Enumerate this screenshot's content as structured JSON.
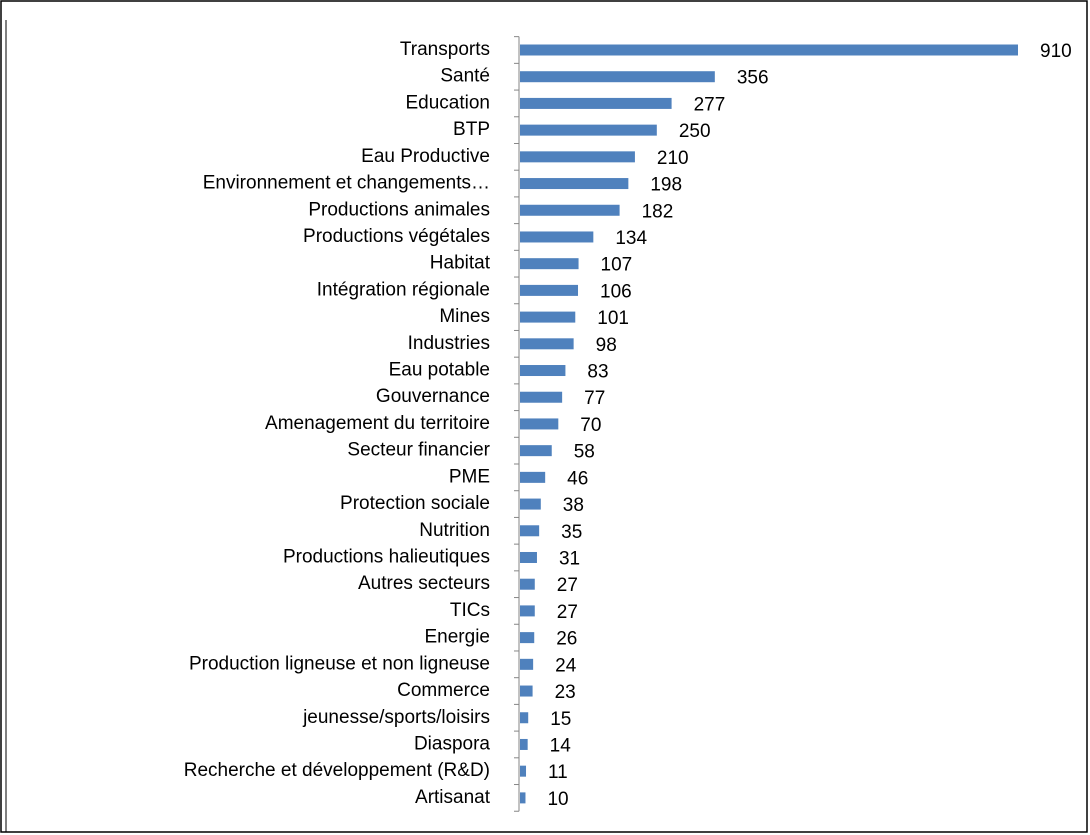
{
  "chart_data": {
    "type": "barh",
    "categories": [
      "Transports",
      "Santé",
      "Education",
      "BTP",
      "Eau Productive",
      "Environnement et changements…",
      "Productions animales",
      "Productions végétales",
      "Habitat",
      "Intégration régionale",
      "Mines",
      "Industries",
      "Eau potable",
      "Gouvernance",
      "Amenagement du territoire",
      "Secteur financier",
      "PME",
      "Protection sociale",
      "Nutrition",
      "Productions halieutiques",
      "Autres secteurs",
      "TICs",
      "Energie",
      "Production ligneuse et non ligneuse",
      "Commerce",
      "jeunesse/sports/loisirs",
      "Diaspora",
      "Recherche et développement (R&D)",
      "Artisanat"
    ],
    "values": [
      910,
      356,
      277,
      250,
      210,
      198,
      182,
      134,
      107,
      106,
      101,
      98,
      83,
      77,
      70,
      58,
      46,
      38,
      35,
      31,
      27,
      27,
      26,
      24,
      23,
      15,
      14,
      11,
      10
    ],
    "color": "#4f81bd"
  }
}
